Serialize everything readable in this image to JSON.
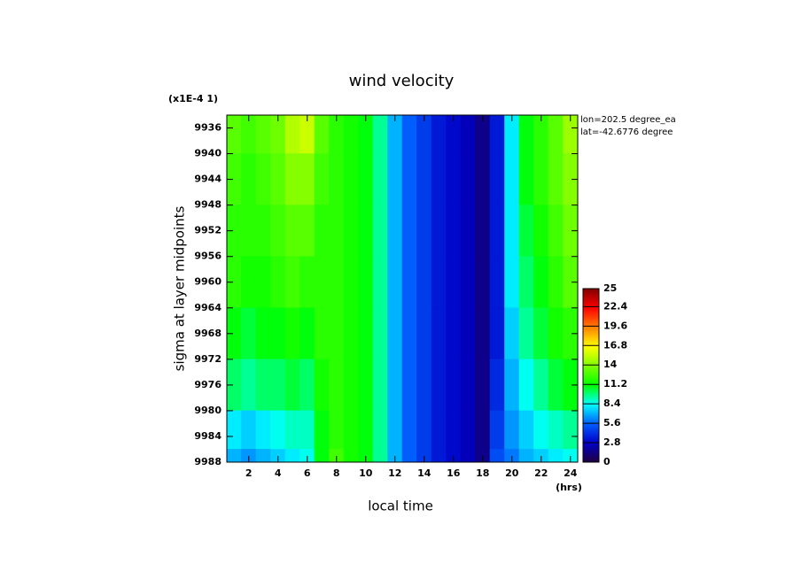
{
  "chart_data": {
    "type": "contour",
    "title": "wind velocity",
    "scale_label": "(x1E-4 1)",
    "annotations": [
      "lon=202.5 degree_ea",
      "lat=-42.6776 degree"
    ],
    "xlabel": "local time",
    "x_unit": "(hrs)",
    "ylabel": "sigma at layer midpoints",
    "x": [
      1,
      2,
      3,
      4,
      5,
      6,
      7,
      8,
      9,
      10,
      11,
      12,
      13,
      14,
      15,
      16,
      17,
      18,
      19,
      20,
      21,
      22,
      23,
      24
    ],
    "y": [
      9936,
      9944,
      9952,
      9960,
      9968,
      9976,
      9984,
      9988
    ],
    "z": [
      [
        13,
        12.5,
        13,
        13.5,
        15,
        15.5,
        13,
        12,
        11.5,
        11,
        9.5,
        7,
        5.5,
        4.5,
        3.5,
        3,
        2.5,
        1.5,
        3.5,
        8,
        11,
        12,
        13,
        14.5
      ],
      [
        12.5,
        12,
        12.5,
        13,
        14,
        14,
        12.5,
        12,
        11.5,
        11,
        9.5,
        7,
        5.5,
        4.5,
        3.5,
        3,
        2.5,
        1.5,
        3.5,
        8,
        11,
        12,
        13,
        14
      ],
      [
        12,
        12,
        12,
        12.5,
        13,
        13,
        12,
        12,
        11.5,
        11,
        9.5,
        7,
        5.5,
        4.5,
        3.5,
        3,
        2.5,
        1.5,
        3.5,
        8,
        10.5,
        11.5,
        12.5,
        13.5
      ],
      [
        12,
        11.5,
        11.5,
        12,
        12.5,
        12,
        12,
        12,
        11.5,
        11,
        9.5,
        7,
        5.5,
        4.5,
        3.5,
        3,
        2.5,
        1.5,
        3.5,
        8,
        10,
        11,
        12,
        13
      ],
      [
        11,
        10.5,
        11,
        11,
        11.5,
        11,
        12,
        12,
        11.5,
        11,
        9.5,
        7,
        5.5,
        4.5,
        3.5,
        3,
        2.5,
        1.5,
        3.5,
        7.5,
        9.5,
        10.5,
        11.5,
        12
      ],
      [
        10,
        9.5,
        10,
        10,
        10.5,
        10,
        11.5,
        12,
        11.5,
        11,
        9.5,
        7,
        5.5,
        4.5,
        3.5,
        3,
        2.5,
        1.5,
        4,
        7,
        8.5,
        9.5,
        10.5,
        11
      ],
      [
        8,
        7.5,
        8,
        8.5,
        9,
        9,
        11,
        12,
        11.5,
        11,
        9.5,
        7,
        5.5,
        4.5,
        3.5,
        3,
        2.5,
        1.5,
        4.5,
        6.5,
        7.5,
        8.5,
        9,
        9.5
      ],
      [
        7,
        6.5,
        7,
        7.5,
        8,
        8.5,
        11,
        12.5,
        11.5,
        11,
        9.5,
        7,
        5.5,
        4.5,
        3.5,
        3,
        2.5,
        1.5,
        5,
        6,
        7,
        7.5,
        8,
        8.5
      ]
    ],
    "xlim": [
      0.5,
      24.5
    ],
    "xticks": [
      2,
      4,
      6,
      8,
      10,
      12,
      14,
      16,
      18,
      20,
      22,
      24
    ],
    "ylim": [
      9988,
      9934
    ],
    "yticks": [
      9936,
      9940,
      9944,
      9948,
      9952,
      9956,
      9960,
      9964,
      9968,
      9972,
      9976,
      9980,
      9984,
      9988
    ],
    "colorbar": {
      "lim": [
        0,
        25
      ],
      "ticks": [
        0,
        2.8,
        5.6,
        8.4,
        11.2,
        14,
        16.8,
        19.6,
        22.4,
        25
      ],
      "colors": [
        "#200040",
        "#0000c8",
        "#0060ff",
        "#00ffff",
        "#00ff00",
        "#80ff00",
        "#ffff00",
        "#ff8000",
        "#ff0000",
        "#800000"
      ]
    }
  }
}
